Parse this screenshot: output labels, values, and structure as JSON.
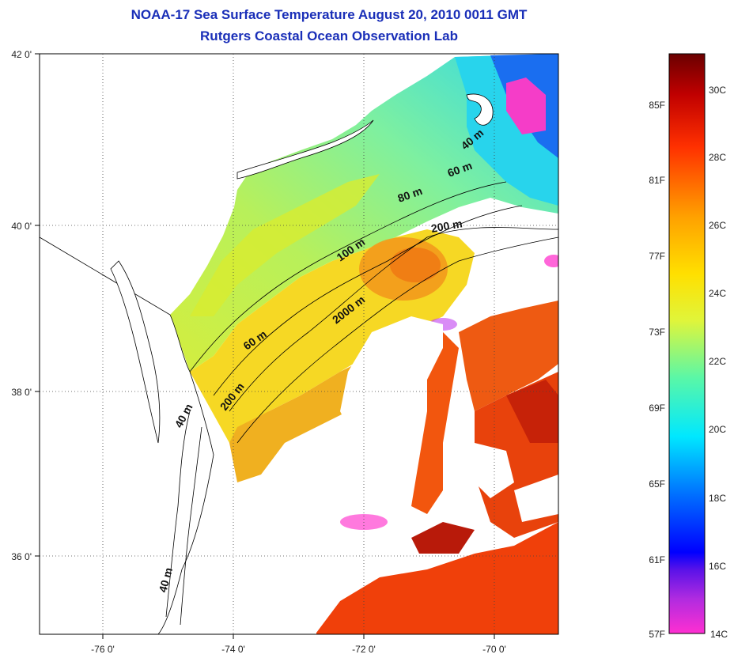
{
  "title": {
    "line1": "NOAA-17 Sea Surface Temperature August 20, 2010 0011 GMT",
    "line2": "Rutgers Coastal Ocean Observation Lab"
  },
  "lat_labels": [
    "42 0'",
    "40 0'",
    "38 0'",
    "36 0'"
  ],
  "lon_labels": [
    "-76 0'",
    "-74 0'",
    "-72 0'",
    "-70 0'"
  ],
  "isobath_labels": [
    "40 m",
    "60 m",
    "80 m",
    "200 m",
    "100 m",
    "2000 m",
    "60 m",
    "200 m",
    "40 m",
    "40 m"
  ],
  "colorbar": {
    "fahrenheit": [
      "85F",
      "81F",
      "77F",
      "73F",
      "69F",
      "65F",
      "61F",
      "57F"
    ],
    "celsius": [
      "30C",
      "28C",
      "26C",
      "24C",
      "22C",
      "20C",
      "18C",
      "16C",
      "14C"
    ],
    "colors": [
      "#ff2fd1",
      "#8c1ff0",
      "#0000ff",
      "#0070ff",
      "#00e8ff",
      "#59f7a8",
      "#e0f53a",
      "#ffe000",
      "#ffa000",
      "#ff3000",
      "#c00000",
      "#6a0000"
    ]
  },
  "colors": {
    "title": "#1a2fb8",
    "land": "#ffffff",
    "no_data": "#ffffff"
  }
}
